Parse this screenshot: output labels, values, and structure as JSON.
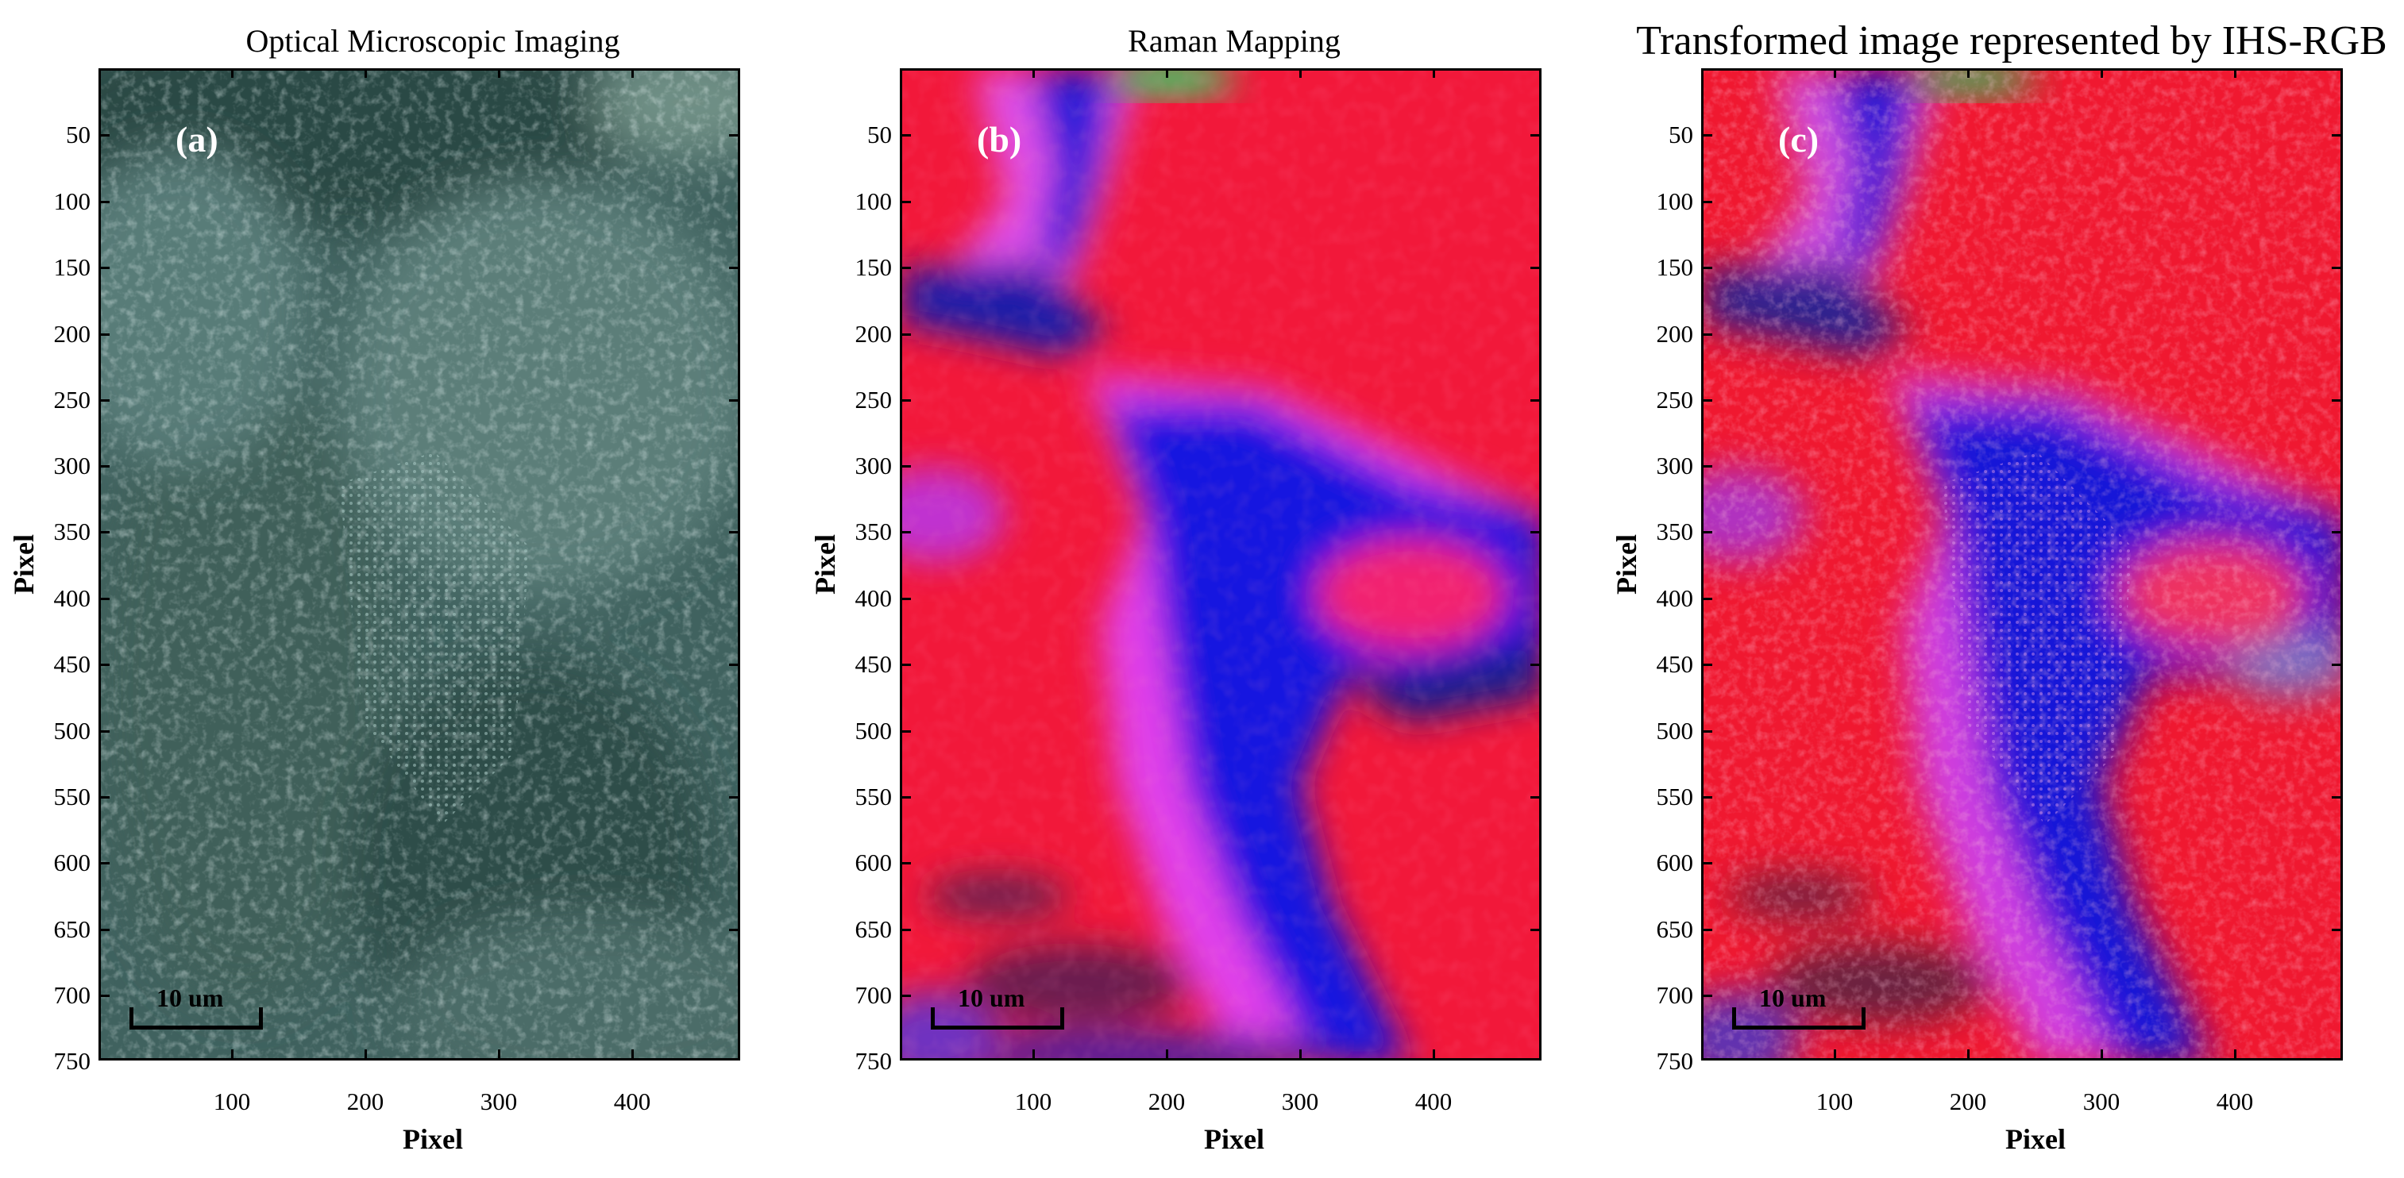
{
  "panels": [
    {
      "id": "a",
      "title": "Optical Microscopic Imaging",
      "label": "(a)",
      "scale_label": "10 um"
    },
    {
      "id": "b",
      "title": "Raman Mapping",
      "label": "(b)",
      "scale_label": "10 um"
    },
    {
      "id": "c",
      "title": "Transformed image represented by IHS-RGB",
      "label": "(c)",
      "scale_label": "10 um"
    }
  ],
  "axes": {
    "xlabel": "Pixel",
    "ylabel": "Pixel",
    "yticks": [
      "50",
      "100",
      "150",
      "200",
      "250",
      "300",
      "350",
      "400",
      "450",
      "500",
      "550",
      "600",
      "650",
      "700",
      "750"
    ],
    "xticks": [
      "100",
      "200",
      "300",
      "400"
    ]
  }
}
